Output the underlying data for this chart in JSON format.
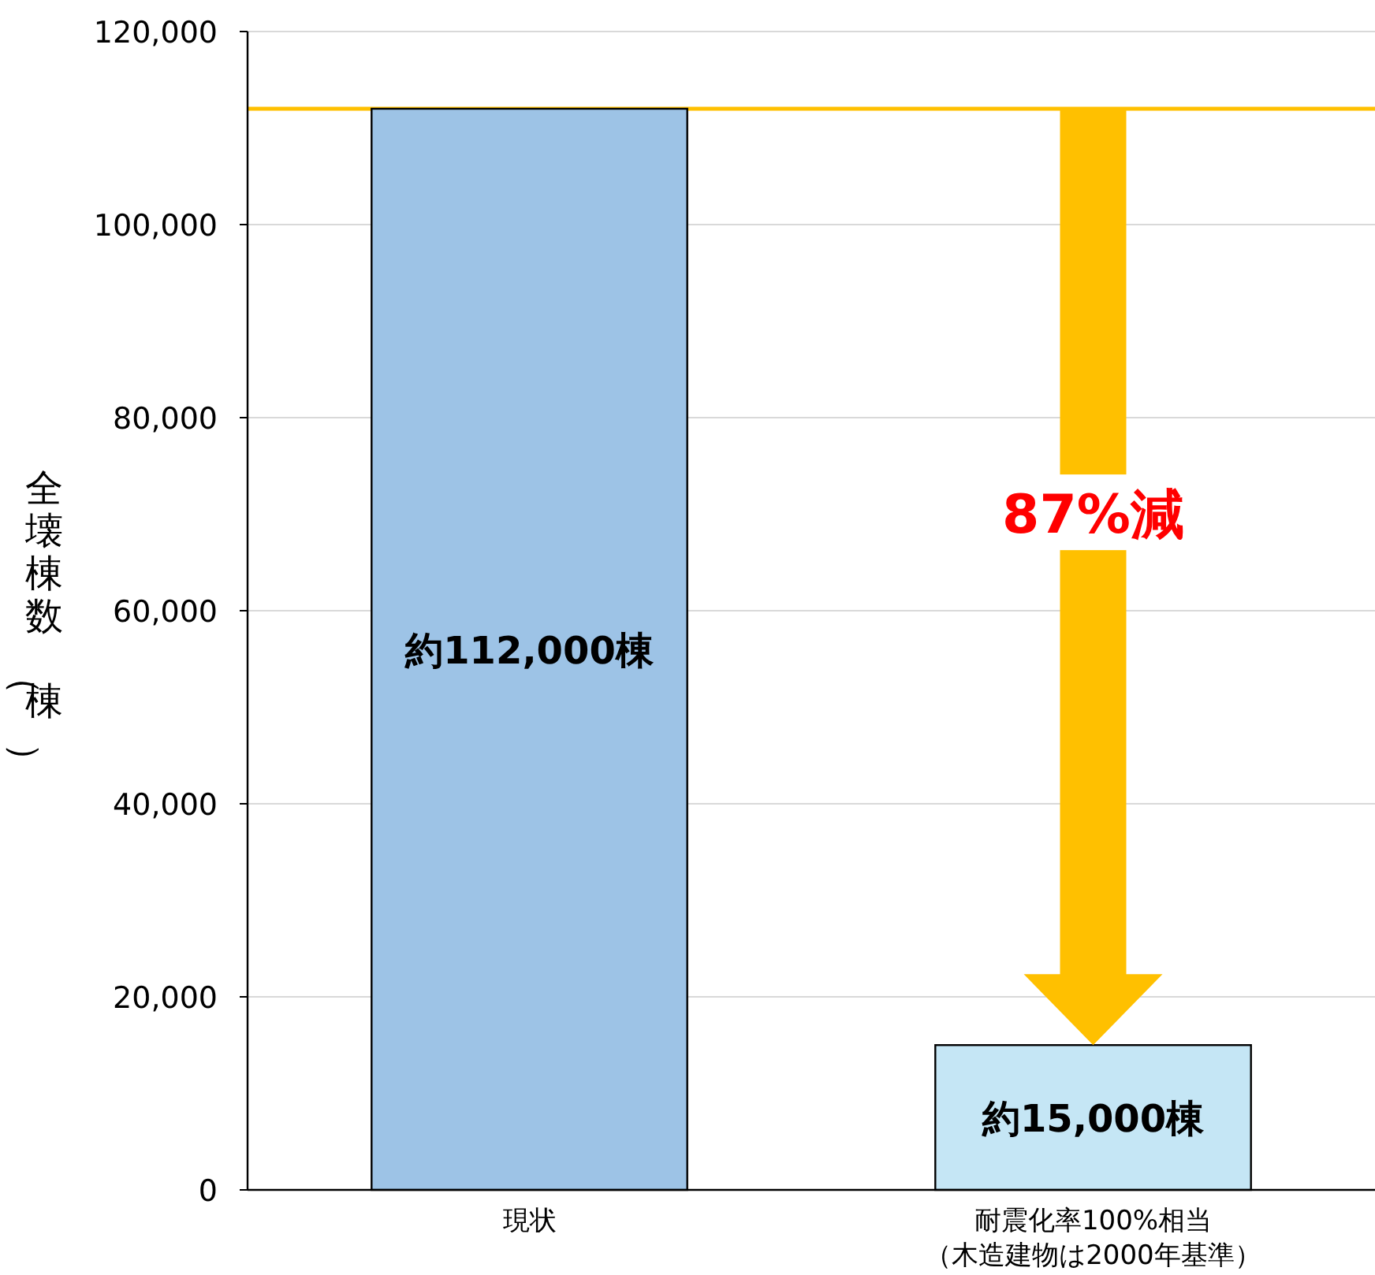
{
  "chart_data": {
    "type": "bar",
    "ylabel": "全壊棟数（棟）",
    "categories": [
      "現状",
      "耐震化率100%相当（木造建物は2000年基準）"
    ],
    "values": [
      112000,
      15000
    ],
    "colors": [
      "#9dc3e6",
      "#c5e6f5"
    ],
    "value_labels": [
      "約112,000棟",
      "約15,000棟"
    ],
    "ylim": [
      0,
      120000
    ],
    "yticks": [
      0,
      {
        "value": 20000,
        "label": "20,000"
      },
      {
        "value": 40000,
        "label": "40,000"
      },
      {
        "value": 60000,
        "label": "60,000"
      },
      {
        "value": 80000,
        "label": "80,000"
      },
      {
        "value": 100000,
        "label": "100,000"
      },
      {
        "value": 120000,
        "label": "120,000"
      }
    ],
    "grid": "y",
    "ref_lines": [
      {
        "axis": "y",
        "value": 112000,
        "color": "#ffc000"
      }
    ],
    "annotations": [
      "87%減"
    ]
  }
}
